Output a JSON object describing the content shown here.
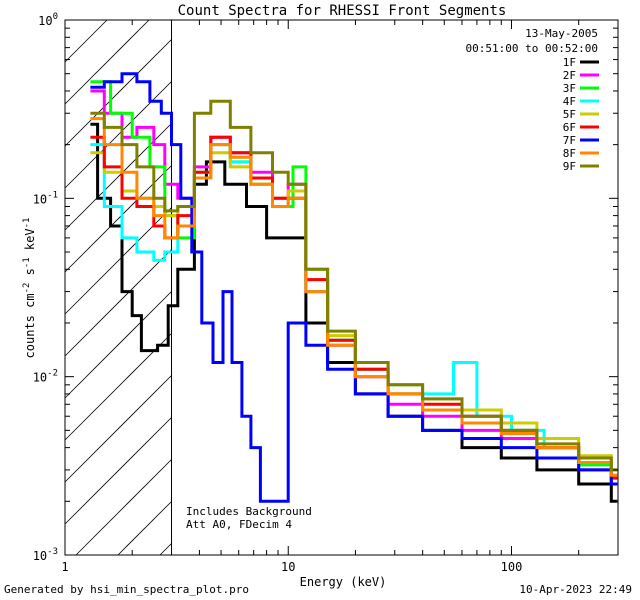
{
  "chart_data": {
    "type": "line",
    "title": "Count Spectra for RHESSI Front Segments",
    "xlabel": "Energy (keV)",
    "ylabel": "counts cm^-2 s^-1 keV^-1",
    "x_scale": "log",
    "y_scale": "log",
    "xlim": [
      1,
      300
    ],
    "ylim": [
      0.001,
      1
    ],
    "x_ticks": [
      {
        "value": 1,
        "label": "1"
      },
      {
        "value": 10,
        "label": "10"
      },
      {
        "value": 100,
        "label": "100"
      }
    ],
    "y_ticks": [
      {
        "value": 1,
        "label": "10",
        "exp": "0"
      },
      {
        "value": 0.1,
        "label": "10",
        "exp": "-1"
      },
      {
        "value": 0.01,
        "label": "10",
        "exp": "-2"
      },
      {
        "value": 0.001,
        "label": "10",
        "exp": "-3"
      }
    ],
    "date": "13-May-2005",
    "time_range": "00:51:00 to 00:52:00",
    "annotations": [
      "Includes Background",
      "Att A0, FDecim 4"
    ],
    "shaded_region": {
      "x_from": 1,
      "x_to": 3
    },
    "series": [
      {
        "name": "1F",
        "color": "#000000",
        "points": [
          [
            1.3,
            0.26
          ],
          [
            1.4,
            0.1
          ],
          [
            1.6,
            0.07
          ],
          [
            1.8,
            0.03
          ],
          [
            2.0,
            0.022
          ],
          [
            2.2,
            0.014
          ],
          [
            2.6,
            0.015
          ],
          [
            2.9,
            0.025
          ],
          [
            3.2,
            0.04
          ],
          [
            3.8,
            0.12
          ],
          [
            4.3,
            0.16
          ],
          [
            5.2,
            0.12
          ],
          [
            6.5,
            0.09
          ],
          [
            8.0,
            0.06
          ],
          [
            10,
            0.06
          ],
          [
            12,
            0.02
          ],
          [
            15,
            0.012
          ],
          [
            20,
            0.008
          ],
          [
            28,
            0.006
          ],
          [
            40,
            0.005
          ],
          [
            60,
            0.004
          ],
          [
            90,
            0.0035
          ],
          [
            130,
            0.003
          ],
          [
            200,
            0.0025
          ],
          [
            280,
            0.002
          ]
        ]
      },
      {
        "name": "2F",
        "color": "#ff00ff",
        "points": [
          [
            1.3,
            0.4
          ],
          [
            1.5,
            0.3
          ],
          [
            1.8,
            0.22
          ],
          [
            2.1,
            0.25
          ],
          [
            2.5,
            0.2
          ],
          [
            2.8,
            0.12
          ],
          [
            3.2,
            0.1
          ],
          [
            3.8,
            0.15
          ],
          [
            4.5,
            0.22
          ],
          [
            5.5,
            0.18
          ],
          [
            6.8,
            0.14
          ],
          [
            8.5,
            0.1
          ],
          [
            10,
            0.12
          ],
          [
            12,
            0.03
          ],
          [
            15,
            0.015
          ],
          [
            20,
            0.01
          ],
          [
            28,
            0.007
          ],
          [
            40,
            0.006
          ],
          [
            60,
            0.005
          ],
          [
            90,
            0.0045
          ],
          [
            130,
            0.004
          ],
          [
            200,
            0.003
          ],
          [
            280,
            0.0025
          ]
        ]
      },
      {
        "name": "3F",
        "color": "#00ff00",
        "points": [
          [
            1.3,
            0.45
          ],
          [
            1.6,
            0.3
          ],
          [
            2.0,
            0.22
          ],
          [
            2.4,
            0.15
          ],
          [
            2.8,
            0.08
          ],
          [
            3.2,
            0.06
          ],
          [
            3.8,
            0.14
          ],
          [
            4.5,
            0.2
          ],
          [
            5.5,
            0.16
          ],
          [
            6.8,
            0.12
          ],
          [
            8.5,
            0.09
          ],
          [
            10.5,
            0.15
          ],
          [
            12,
            0.04
          ],
          [
            15,
            0.016
          ],
          [
            20,
            0.011
          ],
          [
            28,
            0.008
          ],
          [
            40,
            0.0065
          ],
          [
            60,
            0.0055
          ],
          [
            90,
            0.005
          ],
          [
            130,
            0.004
          ],
          [
            200,
            0.0032
          ],
          [
            280,
            0.0027
          ]
        ]
      },
      {
        "name": "4F",
        "color": "#00ffff",
        "points": [
          [
            1.3,
            0.2
          ],
          [
            1.5,
            0.09
          ],
          [
            1.8,
            0.06
          ],
          [
            2.1,
            0.05
          ],
          [
            2.5,
            0.045
          ],
          [
            2.8,
            0.05
          ],
          [
            3.2,
            0.07
          ],
          [
            3.8,
            0.13
          ],
          [
            4.5,
            0.2
          ],
          [
            5.5,
            0.16
          ],
          [
            6.8,
            0.13
          ],
          [
            8.5,
            0.09
          ],
          [
            10,
            0.1
          ],
          [
            12,
            0.03
          ],
          [
            15,
            0.016
          ],
          [
            20,
            0.011
          ],
          [
            28,
            0.009
          ],
          [
            40,
            0.008
          ],
          [
            55,
            0.012
          ],
          [
            70,
            0.006
          ],
          [
            100,
            0.005
          ],
          [
            140,
            0.004
          ],
          [
            200,
            0.0033
          ],
          [
            280,
            0.0028
          ]
        ]
      },
      {
        "name": "5F",
        "color": "#cccc00",
        "points": [
          [
            1.3,
            0.18
          ],
          [
            1.5,
            0.14
          ],
          [
            1.8,
            0.11
          ],
          [
            2.1,
            0.1
          ],
          [
            2.5,
            0.09
          ],
          [
            2.8,
            0.08
          ],
          [
            3.2,
            0.09
          ],
          [
            3.8,
            0.13
          ],
          [
            4.5,
            0.18
          ],
          [
            5.5,
            0.15
          ],
          [
            6.8,
            0.12
          ],
          [
            8.5,
            0.1
          ],
          [
            10,
            0.11
          ],
          [
            12,
            0.035
          ],
          [
            15,
            0.017
          ],
          [
            20,
            0.012
          ],
          [
            28,
            0.009
          ],
          [
            40,
            0.0075
          ],
          [
            60,
            0.0065
          ],
          [
            90,
            0.0055
          ],
          [
            130,
            0.0045
          ],
          [
            200,
            0.0036
          ],
          [
            280,
            0.003
          ]
        ]
      },
      {
        "name": "6F",
        "color": "#ff0000",
        "points": [
          [
            1.3,
            0.22
          ],
          [
            1.5,
            0.15
          ],
          [
            1.8,
            0.1
          ],
          [
            2.1,
            0.09
          ],
          [
            2.5,
            0.07
          ],
          [
            2.8,
            0.06
          ],
          [
            3.2,
            0.08
          ],
          [
            3.8,
            0.14
          ],
          [
            4.5,
            0.22
          ],
          [
            5.5,
            0.18
          ],
          [
            6.8,
            0.13
          ],
          [
            8.5,
            0.1
          ],
          [
            10,
            0.1
          ],
          [
            12,
            0.035
          ],
          [
            15,
            0.016
          ],
          [
            20,
            0.011
          ],
          [
            28,
            0.008
          ],
          [
            40,
            0.007
          ],
          [
            60,
            0.006
          ],
          [
            90,
            0.005
          ],
          [
            130,
            0.004
          ],
          [
            200,
            0.0033
          ],
          [
            280,
            0.0027
          ]
        ]
      },
      {
        "name": "7F",
        "color": "#0000ff",
        "points": [
          [
            1.3,
            0.42
          ],
          [
            1.5,
            0.45
          ],
          [
            1.8,
            0.5
          ],
          [
            2.1,
            0.45
          ],
          [
            2.4,
            0.35
          ],
          [
            2.7,
            0.3
          ],
          [
            3.0,
            0.2
          ],
          [
            3.3,
            0.1
          ],
          [
            3.7,
            0.05
          ],
          [
            4.1,
            0.02
          ],
          [
            4.6,
            0.012
          ],
          [
            5.1,
            0.03
          ],
          [
            5.6,
            0.012
          ],
          [
            6.2,
            0.006
          ],
          [
            6.8,
            0.004
          ],
          [
            7.5,
            0.002
          ],
          [
            10,
            0.02
          ],
          [
            12,
            0.015
          ],
          [
            15,
            0.011
          ],
          [
            20,
            0.008
          ],
          [
            28,
            0.006
          ],
          [
            40,
            0.005
          ],
          [
            60,
            0.0045
          ],
          [
            90,
            0.004
          ],
          [
            130,
            0.0035
          ],
          [
            200,
            0.003
          ],
          [
            280,
            0.0025
          ]
        ]
      },
      {
        "name": "8F",
        "color": "#ff8800",
        "points": [
          [
            1.3,
            0.28
          ],
          [
            1.5,
            0.2
          ],
          [
            1.8,
            0.14
          ],
          [
            2.1,
            0.1
          ],
          [
            2.5,
            0.08
          ],
          [
            2.8,
            0.06
          ],
          [
            3.2,
            0.07
          ],
          [
            3.8,
            0.13
          ],
          [
            4.5,
            0.2
          ],
          [
            5.5,
            0.17
          ],
          [
            6.8,
            0.12
          ],
          [
            8.5,
            0.09
          ],
          [
            10,
            0.1
          ],
          [
            12,
            0.03
          ],
          [
            15,
            0.015
          ],
          [
            20,
            0.01
          ],
          [
            28,
            0.008
          ],
          [
            40,
            0.0065
          ],
          [
            60,
            0.0055
          ],
          [
            90,
            0.0048
          ],
          [
            130,
            0.004
          ],
          [
            200,
            0.0033
          ],
          [
            280,
            0.0028
          ]
        ]
      },
      {
        "name": "9F",
        "color": "#808000",
        "points": [
          [
            1.3,
            0.3
          ],
          [
            1.5,
            0.25
          ],
          [
            1.8,
            0.2
          ],
          [
            2.1,
            0.15
          ],
          [
            2.5,
            0.1
          ],
          [
            2.8,
            0.085
          ],
          [
            3.2,
            0.09
          ],
          [
            3.8,
            0.3
          ],
          [
            4.5,
            0.35
          ],
          [
            5.5,
            0.25
          ],
          [
            6.8,
            0.18
          ],
          [
            8.5,
            0.14
          ],
          [
            10,
            0.12
          ],
          [
            12,
            0.04
          ],
          [
            15,
            0.018
          ],
          [
            20,
            0.012
          ],
          [
            28,
            0.009
          ],
          [
            40,
            0.0075
          ],
          [
            60,
            0.006
          ],
          [
            90,
            0.005
          ],
          [
            130,
            0.0042
          ],
          [
            200,
            0.0035
          ],
          [
            280,
            0.003
          ]
        ]
      }
    ]
  },
  "footer": {
    "left": "Generated by hsi_min_spectra_plot.pro",
    "right": "10-Apr-2023 22:49"
  }
}
